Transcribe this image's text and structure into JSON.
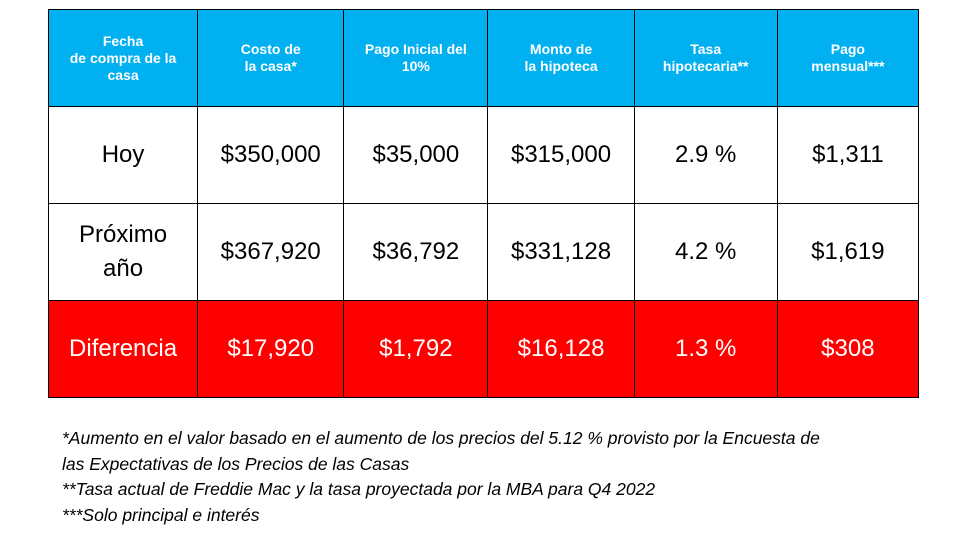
{
  "colors": {
    "header_bg": "#00B0F0",
    "difference_bg": "#FF0000"
  },
  "table": {
    "headers": [
      "Fecha\nde compra de la casa",
      "Costo de\nla casa*",
      "Pago Inicial del 10%",
      "Monto de\nla hipoteca",
      "Tasa hipotecaria**",
      "Pago mensual***"
    ],
    "header_lines": [
      [
        "Fecha",
        "de compra de la",
        "casa"
      ],
      [
        "Costo de",
        "la casa*"
      ],
      [
        "Pago Inicial del",
        "10%"
      ],
      [
        "Monto de",
        "la hipoteca"
      ],
      [
        "Tasa",
        "hipotecaria**"
      ],
      [
        "Pago",
        "mensual***"
      ]
    ],
    "rows": [
      {
        "label_lines": [
          "Hoy"
        ],
        "values": [
          "$350,000",
          "$35,000",
          "$315,000",
          "2.9 %",
          "$1,311"
        ]
      },
      {
        "label_lines": [
          "Próximo",
          "año"
        ],
        "values": [
          "$367,920",
          "$36,792",
          "$331,128",
          "4.2 %",
          "$1,619"
        ]
      },
      {
        "label_lines": [
          "Diferencia"
        ],
        "values": [
          "$17,920",
          "$1,792",
          "$16,128",
          "1.3 %",
          "$308"
        ]
      }
    ]
  },
  "footnotes": [
    "*Aumento en el valor basado en el aumento de los precios del 5.12 % provisto por la Encuesta de",
    "las Expectativas de los Precios de las Casas",
    "**Tasa actual de Freddie Mac y la tasa proyectada por la MBA para Q4 2022",
    "***Solo principal e interés"
  ]
}
